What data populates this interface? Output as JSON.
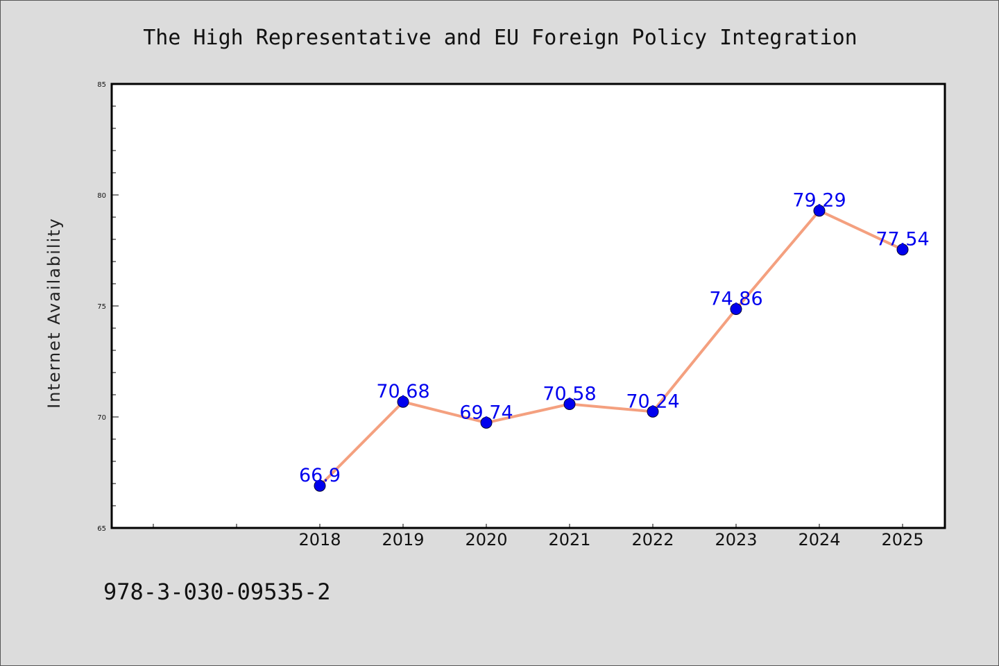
{
  "chart_data": {
    "type": "line",
    "title": "The High Representative and EU Foreign Policy Integration",
    "xlabel": "",
    "ylabel": "Internet Availability",
    "x": [
      "2018",
      "2019",
      "2020",
      "2021",
      "2022",
      "2023",
      "2024",
      "2025"
    ],
    "values": [
      66.9,
      70.68,
      69.74,
      70.58,
      70.24,
      74.86,
      79.29,
      77.54
    ],
    "value_labels": [
      "66.9",
      "70.68",
      "69.74",
      "70.58",
      "70.24",
      "74.86",
      "79.29",
      "77.54"
    ],
    "ylim": [
      65,
      85
    ],
    "yticks": [
      "65",
      "70",
      "75",
      "80",
      "85"
    ],
    "grid": false,
    "colors": {
      "line": "#f4a07f",
      "marker": "#0000ee",
      "label": "#0000ee",
      "plot_background": "#ffffff",
      "page_background": "#dcdcdc"
    }
  },
  "footer": {
    "code": "978-3-030-09535-2"
  }
}
